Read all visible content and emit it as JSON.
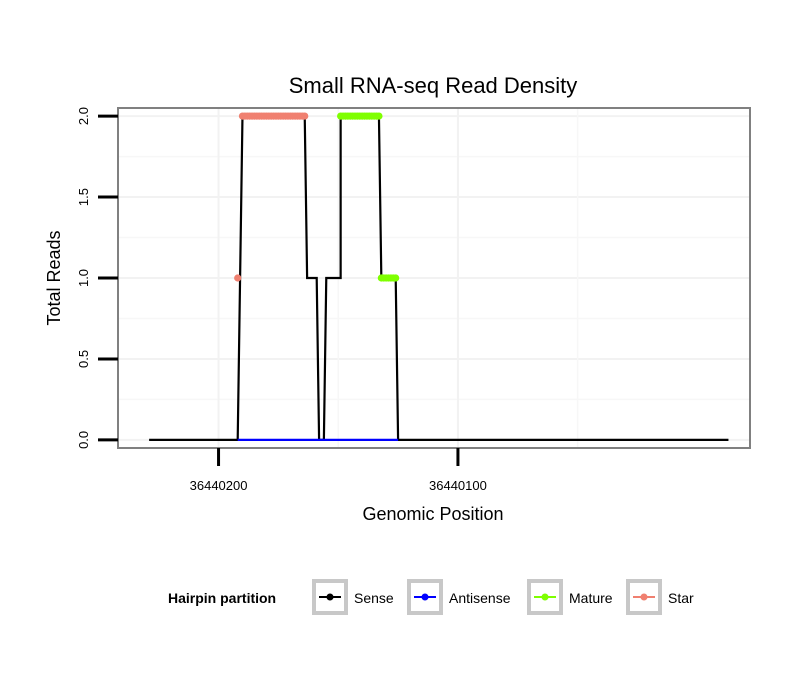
{
  "chart_data": {
    "type": "line",
    "title": "Small RNA-seq Read Density",
    "xlabel": "Genomic Position",
    "ylabel": "Total Reads",
    "x_reversed": true,
    "xlim": [
      36440242,
      36439978
    ],
    "ylim": [
      -0.05,
      2.05
    ],
    "x_ticks": [
      36440200,
      36440100
    ],
    "x_tick_labels": [
      "36440200",
      "36440100"
    ],
    "x_minor_ticks": [
      36440150,
      36440050
    ],
    "y_ticks": [
      0.0,
      0.5,
      1.0,
      1.5,
      2.0
    ],
    "y_tick_labels": [
      "0.0",
      "0.5",
      "1.0",
      "1.5",
      "2.0"
    ],
    "grid": true,
    "legend": {
      "title": "Hairpin partition",
      "position": "bottom",
      "entries": [
        "Sense",
        "Antisense",
        "Mature",
        "Star"
      ]
    },
    "colors": {
      "Sense": "#000000",
      "Antisense": "#0000ff",
      "Mature": "#7fff00",
      "Star": "#f08070"
    },
    "series": [
      {
        "name": "Sense",
        "style": "line",
        "x": [
          36440229,
          36440192,
          36440190,
          36440164,
          36440163,
          36440159,
          36440158,
          36440156,
          36440155,
          36440149,
          36440149,
          36440133,
          36440132,
          36440126,
          36440125,
          36439987
        ],
        "y": [
          0,
          0,
          2,
          2,
          1,
          1,
          0,
          0,
          1,
          1,
          2,
          2,
          1,
          1,
          0,
          0
        ]
      },
      {
        "name": "Antisense",
        "style": "line",
        "x": [
          36440192,
          36440125
        ],
        "y": [
          0,
          0
        ]
      },
      {
        "name": "Mature",
        "style": "points",
        "x": [
          36440149,
          36440148,
          36440147,
          36440146,
          36440145,
          36440144,
          36440143,
          36440142,
          36440141,
          36440140,
          36440139,
          36440138,
          36440137,
          36440136,
          36440135,
          36440134,
          36440133,
          36440132,
          36440131,
          36440130,
          36440129,
          36440128,
          36440127,
          36440126
        ],
        "y": [
          2,
          2,
          2,
          2,
          2,
          2,
          2,
          2,
          2,
          2,
          2,
          2,
          2,
          2,
          2,
          2,
          2,
          1,
          1,
          1,
          1,
          1,
          1,
          1
        ]
      },
      {
        "name": "Star",
        "style": "points",
        "x": [
          36440192,
          36440190,
          36440189,
          36440188,
          36440187,
          36440186,
          36440185,
          36440184,
          36440183,
          36440182,
          36440181,
          36440180,
          36440179,
          36440178,
          36440177,
          36440176,
          36440175,
          36440174,
          36440173,
          36440172,
          36440171,
          36440170,
          36440169,
          36440168,
          36440167,
          36440166,
          36440165,
          36440164
        ],
        "y": [
          1,
          2,
          2,
          2,
          2,
          2,
          2,
          2,
          2,
          2,
          2,
          2,
          2,
          2,
          2,
          2,
          2,
          2,
          2,
          2,
          2,
          2,
          2,
          2,
          2,
          2,
          2,
          2
        ]
      }
    ]
  }
}
